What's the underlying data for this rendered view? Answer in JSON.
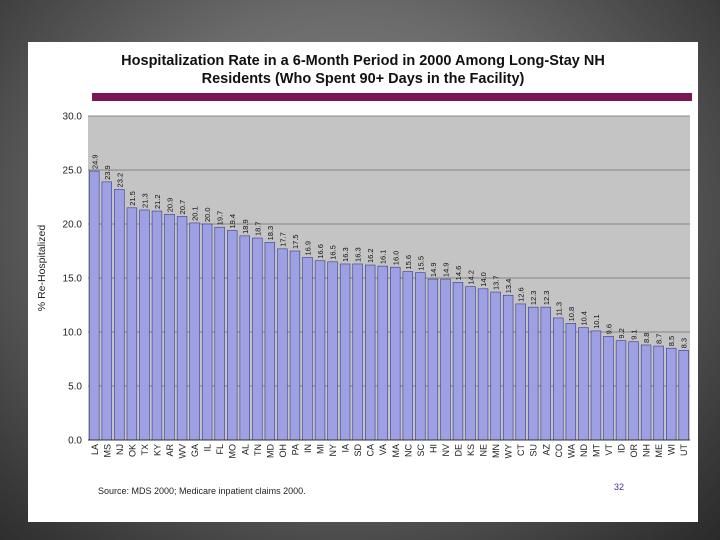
{
  "chart_data": {
    "type": "bar",
    "title_line1": "Hospitalization Rate in a 6-Month Period in 2000 Among Long-Stay NH",
    "title_line2": "Residents (Who Spent 90+ Days in the Facility)",
    "ylabel": "% Re-Hospitalized",
    "xlabel": "",
    "ylim": [
      0,
      30
    ],
    "yticks": [
      "0.0",
      "5.0",
      "10.0",
      "15.0",
      "20.0",
      "25.0",
      "30.0"
    ],
    "categories": [
      "LA",
      "MS",
      "NJ",
      "OK",
      "TX",
      "KY",
      "AR",
      "WV",
      "GA",
      "IL",
      "FL",
      "MO",
      "AL",
      "TN",
      "MD",
      "OH",
      "PA",
      "IN",
      "MI",
      "NY",
      "IA",
      "SD",
      "CA",
      "VA",
      "MA",
      "NC",
      "SC",
      "HI",
      "NV",
      "DE",
      "KS",
      "NE",
      "MN",
      "WY",
      "CT",
      "SU",
      "AZ",
      "CO",
      "WA",
      "ND",
      "MT",
      "VT",
      "ID",
      "OR",
      "NH",
      "ME",
      "WI",
      "UT"
    ],
    "values": [
      24.9,
      23.9,
      23.2,
      21.5,
      21.3,
      21.2,
      20.9,
      20.7,
      20.1,
      20.0,
      19.7,
      19.4,
      18.9,
      18.7,
      18.3,
      17.7,
      17.5,
      16.9,
      16.6,
      16.5,
      16.3,
      16.3,
      16.2,
      16.1,
      16.0,
      15.6,
      15.5,
      14.9,
      14.9,
      14.6,
      14.2,
      14.0,
      13.7,
      13.4,
      12.6,
      12.3,
      12.3,
      11.3,
      10.8,
      10.4,
      10.1,
      9.6,
      9.2,
      9.1,
      8.8,
      8.7,
      8.5,
      8.3
    ],
    "value_labels": [
      "24.9",
      "23.9",
      "23.2",
      "21.5",
      "21.3",
      "21.2",
      "20.9",
      "20.7",
      "20.1",
      "20.0",
      "19.7",
      "19.4",
      "18.9",
      "18.7",
      "18.3",
      "17.7",
      "17.5",
      "16.9",
      "16.6",
      "16.5",
      "16.3",
      "16.3",
      "16.2",
      "16.1",
      "16.0",
      "15.6",
      "15.5",
      "14.9",
      "14.9",
      "14.6",
      "14.2",
      "14.0",
      "13.7",
      "13.4",
      "12.6",
      "12.3",
      "12.3",
      "11.3",
      "10.8",
      "10.4",
      "10.1",
      "9.6",
      "9.2",
      "9.1",
      "8.8",
      "8.7",
      "8.5",
      "8.3"
    ],
    "bar_color": "#9ea0e4",
    "plot_bg": "#c4c4c4",
    "grid": true
  },
  "source": "Source: MDS 2000; Medicare inpatient claims 2000.",
  "page_number": "32",
  "colors": {
    "accent_rule": "#7b1555",
    "page_number": "#4a2c8a"
  }
}
